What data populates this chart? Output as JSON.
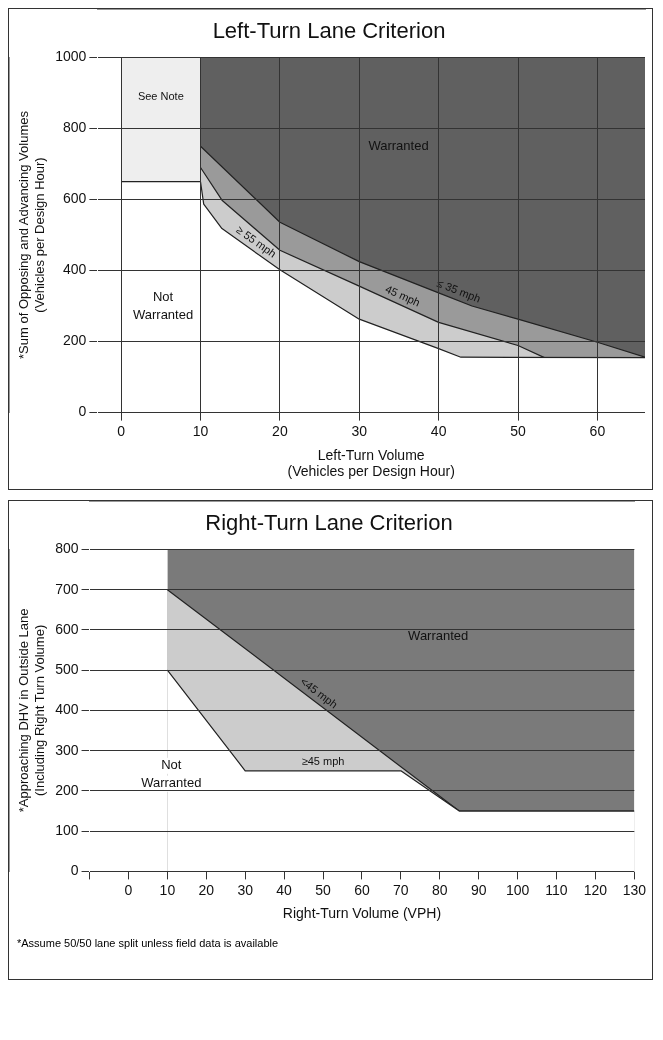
{
  "chart_data": [
    {
      "type": "area",
      "title": "Left-Turn Lane Criterion",
      "xlabel": "Left-Turn Volume\n(Vehicles per Design Hour)",
      "ylabel": "*Sum of Opposing and Advancing Volumes\n(Vehicles per Design Hour)",
      "xlim": [
        -3,
        66
      ],
      "xticks": [
        0,
        10,
        20,
        30,
        40,
        50,
        60
      ],
      "ylim": [
        0,
        1000
      ],
      "yticks": [
        0,
        200,
        400,
        600,
        800,
        1000
      ],
      "grid": true,
      "series": [
        {
          "type": "area",
          "color": "#606060",
          "x": [
            10,
            66
          ],
          "values": [
            1000,
            1000
          ]
        },
        {
          "name": "See Note",
          "type": "area",
          "color": "#eeeeee",
          "x": [
            0,
            10
          ],
          "values": [
            1000,
            1000
          ]
        },
        {
          "name": "≤ 35 mph",
          "type": "area",
          "color": "#9a9a9a",
          "x": [
            10,
            20,
            30,
            40,
            44.2,
            50,
            60,
            66
          ],
          "values": [
            750,
            536,
            425,
            337,
            300,
            263,
            198,
            156
          ]
        },
        {
          "name": "45 mph",
          "type": "area",
          "color": "#cccccc",
          "x": [
            10,
            12.7,
            20,
            30,
            40,
            50,
            53.4,
            66
          ],
          "values": [
            690,
            598,
            457,
            356,
            254,
            189,
            154,
            152
          ]
        },
        {
          "name": "≥ 55 mph",
          "type": "area",
          "color": "#ffffff",
          "x": [
            0,
            10,
            10.4,
            12.7,
            20,
            30,
            40,
            42.8,
            66
          ],
          "values": [
            650,
            650,
            587,
            518,
            402,
            263,
            180,
            156,
            155
          ]
        }
      ],
      "annotations": [
        "Warranted",
        "Not\nWarranted"
      ]
    },
    {
      "type": "area",
      "title": "Right-Turn Lane Criterion",
      "xlabel": "Right-Turn Volume (VPH)",
      "ylabel": "*Approaching DHV in Outside Lane\n(Including Right Turn Volume)",
      "xlim": [
        -10,
        130
      ],
      "xticks": [
        {
          "value": -10,
          "label": null
        },
        0,
        10,
        20,
        30,
        40,
        50,
        60,
        70,
        80,
        90,
        100,
        110,
        120,
        130
      ],
      "ylim": [
        0,
        800
      ],
      "yticks": [
        0,
        100,
        200,
        300,
        400,
        500,
        600,
        700,
        800
      ],
      "grid": "y",
      "series": [
        {
          "type": "area",
          "color": "#7a7a7a",
          "x": [
            10,
            130
          ],
          "values": [
            800,
            800
          ]
        },
        {
          "name": "<45 mph",
          "type": "area",
          "color": "#cccccc",
          "x": [
            10,
            85,
            130
          ],
          "values": [
            700,
            150,
            150
          ]
        },
        {
          "name": "≥45 mph",
          "type": "area",
          "color": "#ffffff",
          "x": [
            10,
            30,
            70,
            85,
            130
          ],
          "values": [
            500,
            250,
            250,
            150,
            150
          ]
        }
      ],
      "annotations": [
        "Warranted",
        "Not\nWarranted",
        "*Assume 50/50 lane split unless field data is available"
      ]
    }
  ]
}
